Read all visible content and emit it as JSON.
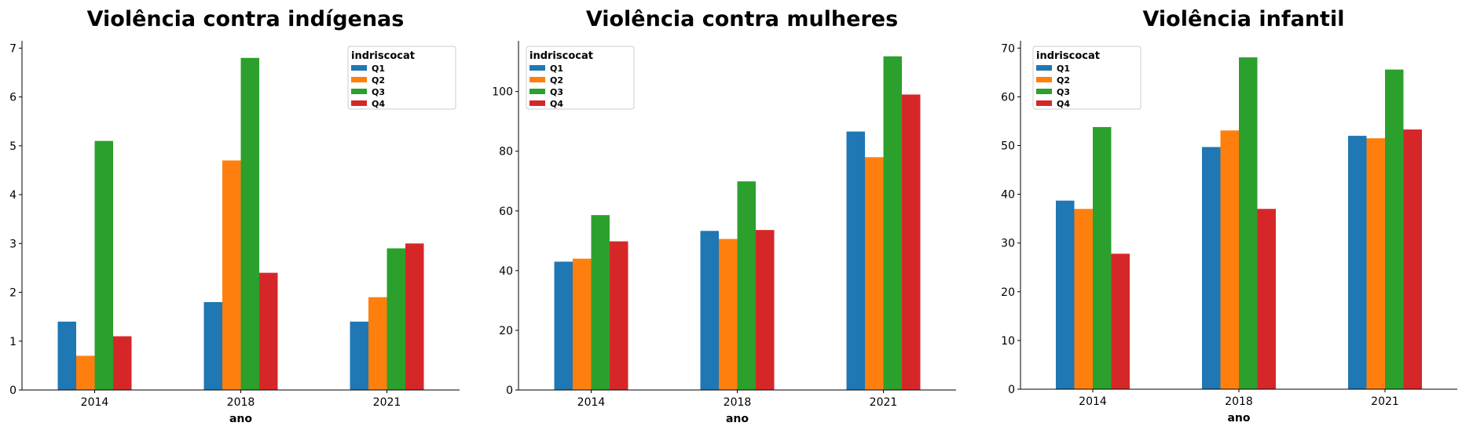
{
  "colors": {
    "Q1": "#1f77b4",
    "Q2": "#ff7f0e",
    "Q3": "#2ca02c",
    "Q4": "#d62728"
  },
  "chart_data": [
    {
      "type": "bar",
      "title": "Violência contra indígenas",
      "xlabel": "ano",
      "ylabel": "",
      "categories": [
        "2014",
        "2018",
        "2021"
      ],
      "ylim": [
        0,
        7.15
      ],
      "yticks": [
        0,
        1,
        2,
        3,
        4,
        5,
        6,
        7
      ],
      "legend": {
        "title": "indriscocat",
        "placement": "top-right"
      },
      "series": [
        {
          "name": "Q1",
          "values": [
            1.4,
            1.8,
            1.4
          ]
        },
        {
          "name": "Q2",
          "values": [
            0.7,
            4.7,
            1.9
          ]
        },
        {
          "name": "Q3",
          "values": [
            5.1,
            6.8,
            2.9
          ]
        },
        {
          "name": "Q4",
          "values": [
            1.1,
            2.4,
            3.0
          ]
        }
      ]
    },
    {
      "type": "bar",
      "title": "Violência contra mulheres",
      "xlabel": "ano",
      "ylabel": "",
      "categories": [
        "2014",
        "2018",
        "2021"
      ],
      "ylim": [
        0,
        117
      ],
      "yticks": [
        0,
        20,
        40,
        60,
        80,
        100
      ],
      "legend": {
        "title": "indriscocat",
        "placement": "top-left"
      },
      "series": [
        {
          "name": "Q1",
          "values": [
            43,
            53.3,
            86.6
          ]
        },
        {
          "name": "Q2",
          "values": [
            44,
            50.6,
            78
          ]
        },
        {
          "name": "Q3",
          "values": [
            58.6,
            69.9,
            111.8
          ]
        },
        {
          "name": "Q4",
          "values": [
            49.8,
            53.6,
            99
          ]
        }
      ]
    },
    {
      "type": "bar",
      "title": "Violência infantil",
      "xlabel": "ano",
      "ylabel": "",
      "categories": [
        "2014",
        "2018",
        "2021"
      ],
      "ylim": [
        0,
        71.5
      ],
      "yticks": [
        0,
        10,
        20,
        30,
        40,
        50,
        60,
        70
      ],
      "legend": {
        "title": "indriscocat",
        "placement": "top-left"
      },
      "series": [
        {
          "name": "Q1",
          "values": [
            38.7,
            49.7,
            52
          ]
        },
        {
          "name": "Q2",
          "values": [
            37,
            53.1,
            51.5
          ]
        },
        {
          "name": "Q3",
          "values": [
            53.8,
            68.1,
            65.6
          ]
        },
        {
          "name": "Q4",
          "values": [
            27.8,
            37,
            53.3
          ]
        }
      ]
    }
  ]
}
